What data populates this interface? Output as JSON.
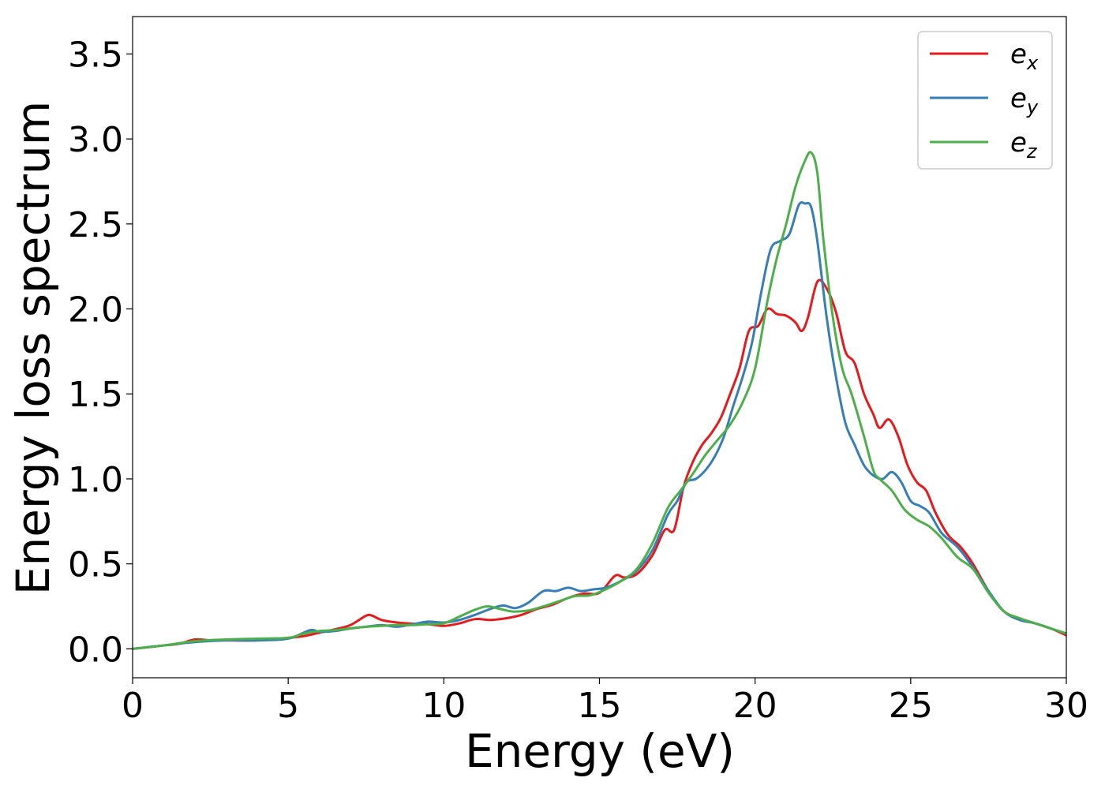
{
  "chart_data": {
    "type": "line",
    "title": "",
    "xlabel": "Energy (eV)",
    "ylabel": "Energy loss spectrum",
    "xlim": [
      0,
      30
    ],
    "ylim": [
      -0.17,
      3.72
    ],
    "xticks": [
      0,
      5,
      10,
      15,
      20,
      25,
      30
    ],
    "yticks": [
      0.0,
      0.5,
      1.0,
      1.5,
      2.0,
      2.5,
      3.0,
      3.5
    ],
    "grid": false,
    "legend_position": "top-right",
    "series": [
      {
        "name": "e_x",
        "label_base": "e",
        "label_sub": "x",
        "color": "#e41a1c",
        "points": [
          [
            0,
            0.0
          ],
          [
            1,
            0.02
          ],
          [
            1.5,
            0.03
          ],
          [
            2,
            0.055
          ],
          [
            2.5,
            0.05
          ],
          [
            3,
            0.05
          ],
          [
            4,
            0.05
          ],
          [
            5,
            0.065
          ],
          [
            5.5,
            0.075
          ],
          [
            6,
            0.095
          ],
          [
            6.5,
            0.115
          ],
          [
            7,
            0.14
          ],
          [
            7.5,
            0.195
          ],
          [
            7.7,
            0.195
          ],
          [
            8,
            0.17
          ],
          [
            8.5,
            0.155
          ],
          [
            9,
            0.148
          ],
          [
            9.5,
            0.145
          ],
          [
            10,
            0.135
          ],
          [
            10.5,
            0.15
          ],
          [
            11,
            0.175
          ],
          [
            11.5,
            0.17
          ],
          [
            12,
            0.18
          ],
          [
            12.5,
            0.2
          ],
          [
            13,
            0.235
          ],
          [
            13.5,
            0.26
          ],
          [
            14,
            0.3
          ],
          [
            14.5,
            0.325
          ],
          [
            15,
            0.33
          ],
          [
            15.5,
            0.43
          ],
          [
            15.8,
            0.42
          ],
          [
            16.2,
            0.44
          ],
          [
            16.7,
            0.55
          ],
          [
            17.1,
            0.7
          ],
          [
            17.4,
            0.7
          ],
          [
            17.7,
            0.95
          ],
          [
            18.0,
            1.1
          ],
          [
            18.3,
            1.2
          ],
          [
            18.6,
            1.27
          ],
          [
            18.9,
            1.36
          ],
          [
            19.2,
            1.5
          ],
          [
            19.5,
            1.65
          ],
          [
            19.8,
            1.87
          ],
          [
            20.1,
            1.9
          ],
          [
            20.4,
            2.0
          ],
          [
            20.7,
            1.97
          ],
          [
            21.0,
            1.96
          ],
          [
            21.3,
            1.92
          ],
          [
            21.5,
            1.87
          ],
          [
            21.7,
            1.95
          ],
          [
            22.0,
            2.16
          ],
          [
            22.3,
            2.12
          ],
          [
            22.6,
            1.98
          ],
          [
            22.9,
            1.75
          ],
          [
            23.2,
            1.68
          ],
          [
            23.5,
            1.5
          ],
          [
            23.8,
            1.38
          ],
          [
            24.0,
            1.3
          ],
          [
            24.3,
            1.35
          ],
          [
            24.6,
            1.25
          ],
          [
            24.9,
            1.08
          ],
          [
            25.2,
            0.98
          ],
          [
            25.5,
            0.93
          ],
          [
            25.8,
            0.8
          ],
          [
            26.2,
            0.67
          ],
          [
            26.6,
            0.6
          ],
          [
            27.0,
            0.5
          ],
          [
            27.5,
            0.34
          ],
          [
            28,
            0.22
          ],
          [
            28.5,
            0.18
          ],
          [
            29,
            0.15
          ],
          [
            29.5,
            0.12
          ],
          [
            30,
            0.08
          ]
        ]
      },
      {
        "name": "e_y",
        "label_base": "e",
        "label_sub": "y",
        "color": "#377eb8",
        "points": [
          [
            0,
            0.0
          ],
          [
            1,
            0.02
          ],
          [
            2,
            0.04
          ],
          [
            3,
            0.05
          ],
          [
            4,
            0.05
          ],
          [
            5,
            0.06
          ],
          [
            5.7,
            0.11
          ],
          [
            6,
            0.1
          ],
          [
            6.5,
            0.105
          ],
          [
            7,
            0.12
          ],
          [
            7.5,
            0.13
          ],
          [
            8,
            0.14
          ],
          [
            8.5,
            0.13
          ],
          [
            9,
            0.145
          ],
          [
            9.5,
            0.16
          ],
          [
            10,
            0.155
          ],
          [
            10.5,
            0.17
          ],
          [
            11,
            0.2
          ],
          [
            11.5,
            0.235
          ],
          [
            11.9,
            0.255
          ],
          [
            12.3,
            0.24
          ],
          [
            12.7,
            0.27
          ],
          [
            13.2,
            0.34
          ],
          [
            13.6,
            0.34
          ],
          [
            14.0,
            0.36
          ],
          [
            14.4,
            0.34
          ],
          [
            14.8,
            0.35
          ],
          [
            15.2,
            0.36
          ],
          [
            15.7,
            0.4
          ],
          [
            16.2,
            0.46
          ],
          [
            16.7,
            0.58
          ],
          [
            17.2,
            0.79
          ],
          [
            17.5,
            0.87
          ],
          [
            17.8,
            0.98
          ],
          [
            18.1,
            1.0
          ],
          [
            18.4,
            1.05
          ],
          [
            18.7,
            1.13
          ],
          [
            19.0,
            1.25
          ],
          [
            19.3,
            1.43
          ],
          [
            19.6,
            1.6
          ],
          [
            19.9,
            1.8
          ],
          [
            20.2,
            2.1
          ],
          [
            20.5,
            2.35
          ],
          [
            20.8,
            2.4
          ],
          [
            21.1,
            2.44
          ],
          [
            21.4,
            2.61
          ],
          [
            21.6,
            2.62
          ],
          [
            21.8,
            2.6
          ],
          [
            22.0,
            2.4
          ],
          [
            22.3,
            1.95
          ],
          [
            22.6,
            1.6
          ],
          [
            22.9,
            1.33
          ],
          [
            23.2,
            1.2
          ],
          [
            23.5,
            1.08
          ],
          [
            23.8,
            1.02
          ],
          [
            24.1,
            1.0
          ],
          [
            24.4,
            1.04
          ],
          [
            24.7,
            0.98
          ],
          [
            25.0,
            0.87
          ],
          [
            25.3,
            0.84
          ],
          [
            25.6,
            0.8
          ],
          [
            26.0,
            0.68
          ],
          [
            26.5,
            0.6
          ],
          [
            27.0,
            0.48
          ],
          [
            27.5,
            0.34
          ],
          [
            28,
            0.22
          ],
          [
            28.5,
            0.17
          ],
          [
            29,
            0.15
          ],
          [
            29.5,
            0.12
          ],
          [
            30,
            0.09
          ]
        ]
      },
      {
        "name": "e_z",
        "label_base": "e",
        "label_sub": "z",
        "color": "#4daf4a",
        "points": [
          [
            0,
            0.0
          ],
          [
            1,
            0.02
          ],
          [
            2,
            0.045
          ],
          [
            3,
            0.055
          ],
          [
            4,
            0.06
          ],
          [
            5,
            0.065
          ],
          [
            5.5,
            0.09
          ],
          [
            6,
            0.105
          ],
          [
            6.5,
            0.11
          ],
          [
            7,
            0.12
          ],
          [
            7.5,
            0.13
          ],
          [
            8,
            0.135
          ],
          [
            8.5,
            0.14
          ],
          [
            9,
            0.14
          ],
          [
            9.5,
            0.145
          ],
          [
            10,
            0.15
          ],
          [
            10.5,
            0.19
          ],
          [
            11,
            0.23
          ],
          [
            11.4,
            0.25
          ],
          [
            11.8,
            0.235
          ],
          [
            12.2,
            0.22
          ],
          [
            12.7,
            0.225
          ],
          [
            13.2,
            0.25
          ],
          [
            13.7,
            0.28
          ],
          [
            14.2,
            0.31
          ],
          [
            14.7,
            0.315
          ],
          [
            15.2,
            0.35
          ],
          [
            15.7,
            0.4
          ],
          [
            16.2,
            0.47
          ],
          [
            16.7,
            0.62
          ],
          [
            17.2,
            0.83
          ],
          [
            17.6,
            0.93
          ],
          [
            18.0,
            1.03
          ],
          [
            18.4,
            1.14
          ],
          [
            18.8,
            1.23
          ],
          [
            19.2,
            1.32
          ],
          [
            19.6,
            1.45
          ],
          [
            20.0,
            1.65
          ],
          [
            20.4,
            2.05
          ],
          [
            20.7,
            2.3
          ],
          [
            21.0,
            2.5
          ],
          [
            21.3,
            2.72
          ],
          [
            21.6,
            2.87
          ],
          [
            21.8,
            2.92
          ],
          [
            22.0,
            2.8
          ],
          [
            22.2,
            2.4
          ],
          [
            22.5,
            1.95
          ],
          [
            22.8,
            1.65
          ],
          [
            23.1,
            1.5
          ],
          [
            23.5,
            1.25
          ],
          [
            23.8,
            1.05
          ],
          [
            24.0,
            1.0
          ],
          [
            24.4,
            0.93
          ],
          [
            24.8,
            0.82
          ],
          [
            25.2,
            0.76
          ],
          [
            25.6,
            0.72
          ],
          [
            26.0,
            0.65
          ],
          [
            26.5,
            0.54
          ],
          [
            27.0,
            0.47
          ],
          [
            27.5,
            0.33
          ],
          [
            28,
            0.22
          ],
          [
            28.5,
            0.18
          ],
          [
            29,
            0.15
          ],
          [
            29.5,
            0.12
          ],
          [
            30,
            0.09
          ]
        ]
      }
    ]
  }
}
